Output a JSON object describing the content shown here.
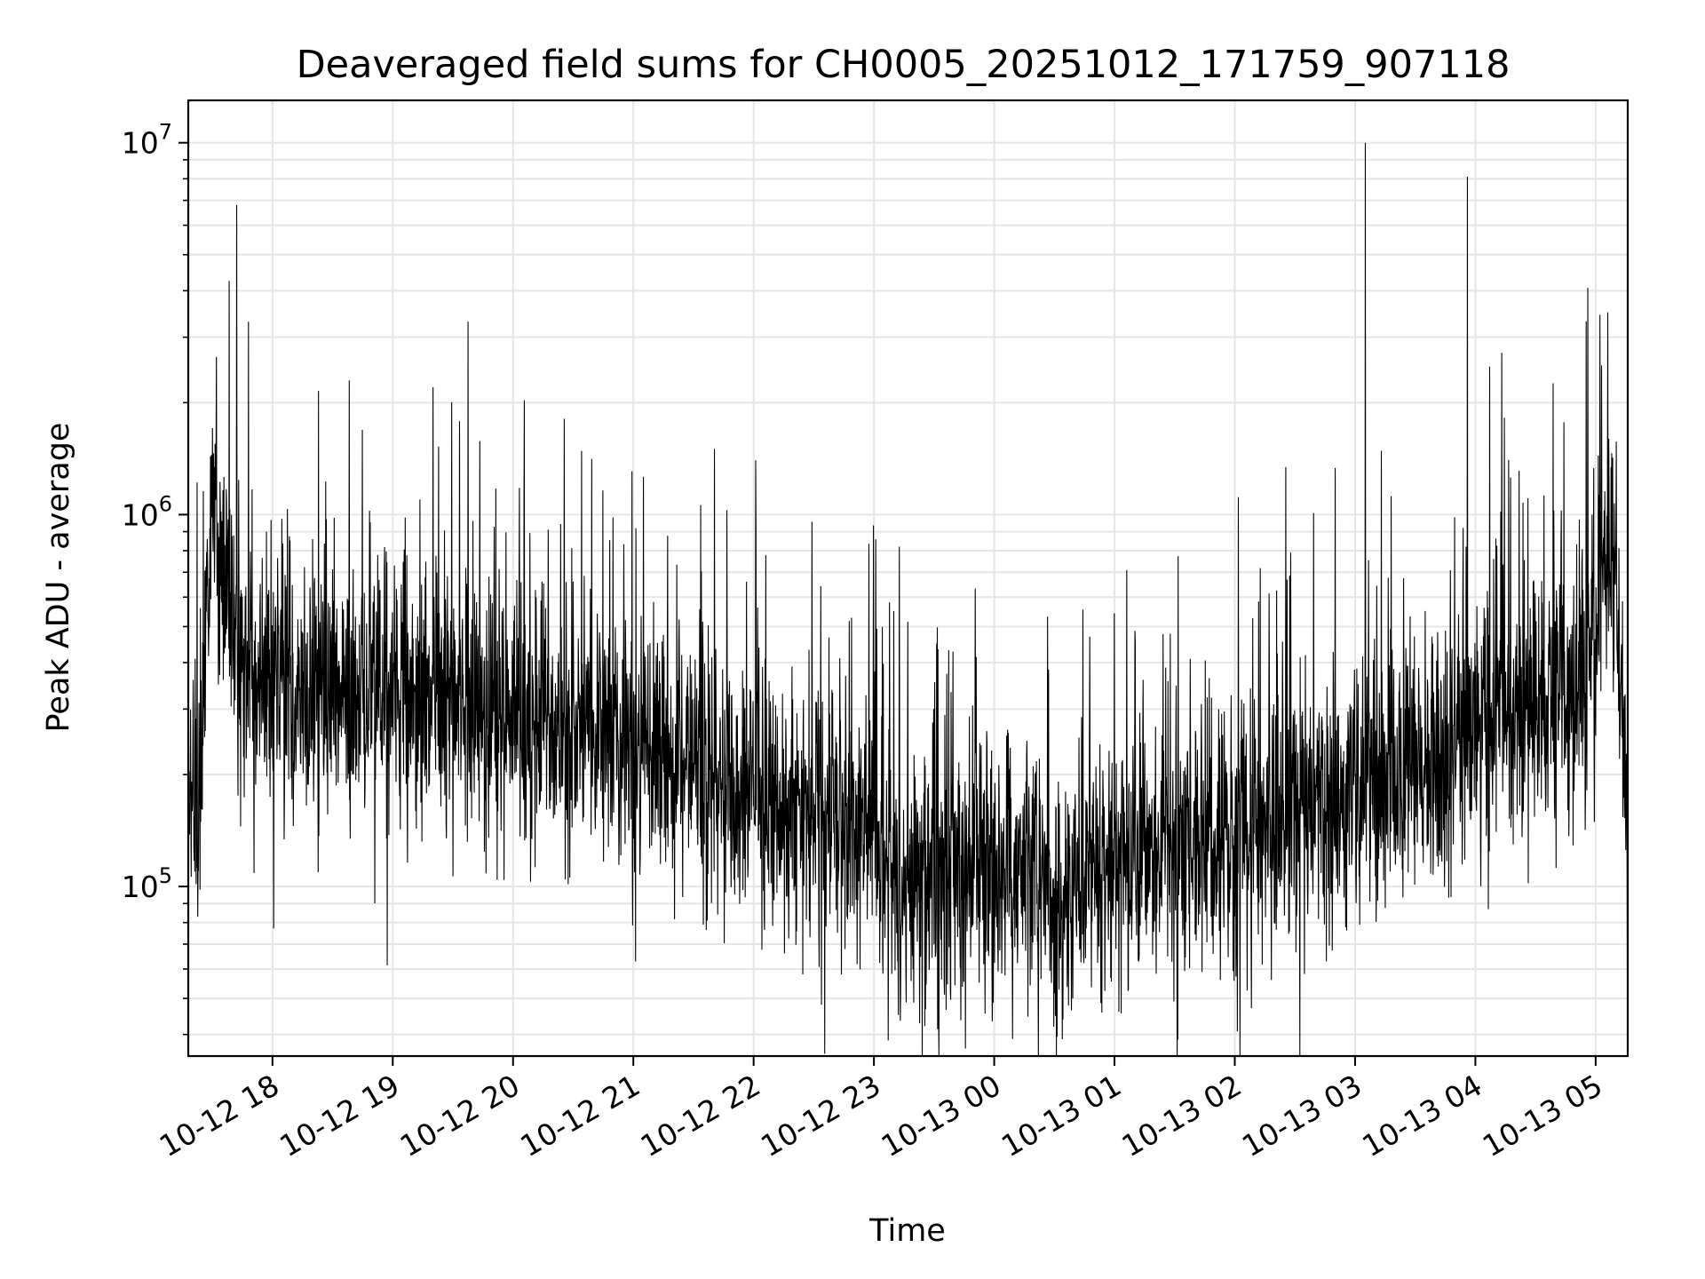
{
  "chart_data": {
    "type": "line",
    "title": "Deaveraged field sums for CH0005_20251012_171759_907118",
    "xlabel": "Time",
    "ylabel": "Peak ADU - average",
    "yscale": "log",
    "ylim": [
      35000,
      13000000
    ],
    "xlim": [
      "2025-10-12 17:18",
      "2025-10-13 05:16"
    ],
    "grid": true,
    "line_color": "#000000",
    "grid_color": "#e6e6e6",
    "x_ticks": [
      {
        "label": "10-12 18",
        "time": "2025-10-12 18:00"
      },
      {
        "label": "10-12 19",
        "time": "2025-10-12 19:00"
      },
      {
        "label": "10-12 20",
        "time": "2025-10-12 20:00"
      },
      {
        "label": "10-12 21",
        "time": "2025-10-12 21:00"
      },
      {
        "label": "10-12 22",
        "time": "2025-10-12 22:00"
      },
      {
        "label": "10-12 23",
        "time": "2025-10-12 23:00"
      },
      {
        "label": "10-13 00",
        "time": "2025-10-13 00:00"
      },
      {
        "label": "10-13 01",
        "time": "2025-10-13 01:00"
      },
      {
        "label": "10-13 02",
        "time": "2025-10-13 02:00"
      },
      {
        "label": "10-13 03",
        "time": "2025-10-13 03:00"
      },
      {
        "label": "10-13 04",
        "time": "2025-10-13 04:00"
      },
      {
        "label": "10-13 05",
        "time": "2025-10-13 05:00"
      }
    ],
    "y_ticks": [
      {
        "label": "10",
        "exponent": "5",
        "value": 100000
      },
      {
        "label": "10",
        "exponent": "6",
        "value": 1000000
      },
      {
        "label": "10",
        "exponent": "7",
        "value": 10000000
      }
    ],
    "series": [
      {
        "x": [
          "2025-10-12 17:18",
          "2025-10-12 17:23",
          "2025-10-12 17:27",
          "2025-10-12 17:30",
          "2025-10-12 17:33",
          "2025-10-12 17:36",
          "2025-10-12 17:42",
          "2025-10-12 17:48",
          "2025-10-12 17:54",
          "2025-10-12 18:00",
          "2025-10-12 18:12",
          "2025-10-12 18:24",
          "2025-10-12 18:36",
          "2025-10-12 18:48",
          "2025-10-12 19:00",
          "2025-10-12 19:12",
          "2025-10-12 19:20",
          "2025-10-12 19:30",
          "2025-10-12 19:45",
          "2025-10-12 20:00",
          "2025-10-12 20:20",
          "2025-10-12 20:40",
          "2025-10-12 21:00",
          "2025-10-12 21:20",
          "2025-10-12 21:40",
          "2025-10-12 22:00",
          "2025-10-12 22:20",
          "2025-10-12 22:40",
          "2025-10-12 23:00",
          "2025-10-12 23:10",
          "2025-10-12 23:20",
          "2025-10-12 23:40",
          "2025-10-13 00:00",
          "2025-10-13 00:20",
          "2025-10-13 00:30",
          "2025-10-13 00:45",
          "2025-10-13 01:00",
          "2025-10-13 01:20",
          "2025-10-13 01:40",
          "2025-10-13 02:00",
          "2025-10-13 02:20",
          "2025-10-13 02:40",
          "2025-10-13 03:00",
          "2025-10-13 03:20",
          "2025-10-13 03:40",
          "2025-10-13 04:00",
          "2025-10-13 04:20",
          "2025-10-13 04:40",
          "2025-10-13 04:50",
          "2025-10-13 05:00",
          "2025-10-13 05:05",
          "2025-10-13 05:10",
          "2025-10-13 05:16"
        ],
        "y": [
          180000,
          170000,
          500000,
          1000000,
          850000,
          700000,
          500000,
          380000,
          350000,
          360000,
          340000,
          330000,
          320000,
          310000,
          320000,
          330000,
          370000,
          330000,
          300000,
          280000,
          270000,
          260000,
          250000,
          230000,
          200000,
          170000,
          160000,
          150000,
          140000,
          95000,
          105000,
          115000,
          120000,
          110000,
          85000,
          110000,
          120000,
          125000,
          130000,
          135000,
          150000,
          165000,
          180000,
          200000,
          230000,
          260000,
          290000,
          320000,
          350000,
          420000,
          850000,
          700000,
          150000
        ]
      }
    ],
    "spikes": [
      {
        "time": "2025-10-12 17:42",
        "value": 6800000
      },
      {
        "time": "2025-10-12 17:48",
        "value": 3300000
      },
      {
        "time": "2025-10-12 19:20",
        "value": 2200000
      },
      {
        "time": "2025-10-12 22:01",
        "value": 1400000
      },
      {
        "time": "2025-10-13 03:05",
        "value": 10000000
      },
      {
        "time": "2025-10-13 03:56",
        "value": 8100000
      },
      {
        "time": "2025-10-13 04:07",
        "value": 2500000
      },
      {
        "time": "2025-10-13 05:06",
        "value": 3500000
      }
    ]
  }
}
